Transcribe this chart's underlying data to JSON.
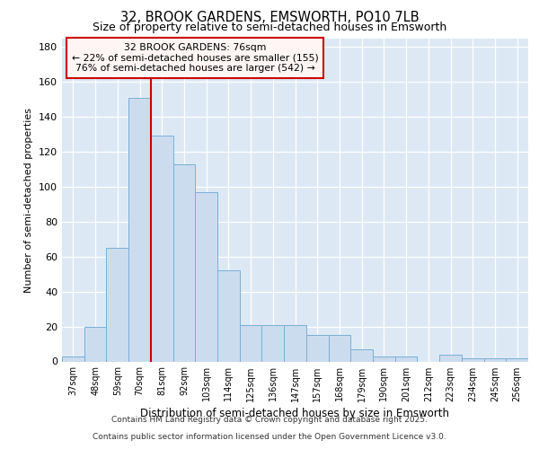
{
  "title_line1": "32, BROOK GARDENS, EMSWORTH, PO10 7LB",
  "title_line2": "Size of property relative to semi-detached houses in Emsworth",
  "xlabel": "Distribution of semi-detached houses by size in Emsworth",
  "ylabel": "Number of semi-detached properties",
  "categories": [
    "37sqm",
    "48sqm",
    "59sqm",
    "70sqm",
    "81sqm",
    "92sqm",
    "103sqm",
    "114sqm",
    "125sqm",
    "136sqm",
    "147sqm",
    "157sqm",
    "168sqm",
    "179sqm",
    "190sqm",
    "201sqm",
    "212sqm",
    "223sqm",
    "234sqm",
    "245sqm",
    "256sqm"
  ],
  "values": [
    3,
    20,
    65,
    151,
    129,
    113,
    97,
    52,
    21,
    21,
    21,
    15,
    15,
    7,
    3,
    3,
    0,
    4,
    2,
    2,
    2
  ],
  "bar_color": "#ccdcef",
  "bar_edge_color": "#7aaed6",
  "highlight_line_color": "#cc0000",
  "annotation_title": "32 BROOK GARDENS: 76sqm",
  "annotation_line1": "← 22% of semi-detached houses are smaller (155)",
  "annotation_line2": "76% of semi-detached houses are larger (542) →",
  "ylim": [
    0,
    185
  ],
  "yticks": [
    0,
    20,
    40,
    60,
    80,
    100,
    120,
    140,
    160,
    180
  ],
  "footer_line1": "Contains HM Land Registry data © Crown copyright and database right 2025.",
  "footer_line2": "Contains public sector information licensed under the Open Government Licence v3.0.",
  "plot_bg_color": "#dce9f5",
  "fig_bg_color": "#ffffff"
}
